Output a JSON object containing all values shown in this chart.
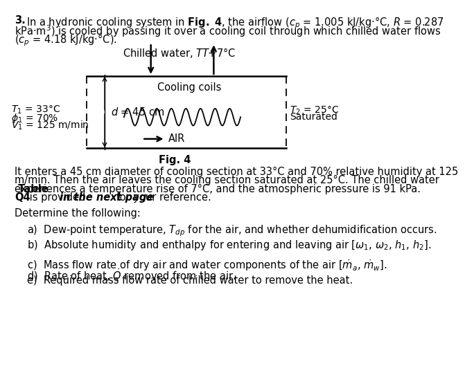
{
  "bg_color": "#ffffff",
  "text_color": "#000000",
  "fig_caption": "Fig. 4",
  "chilled_water_label": "Chilled water, $T$",
  "chilled_water_out": "$T$+7°C",
  "cooling_coils_label": "Cooling coils",
  "air_label": "AIR",
  "d_label": "$d$ = 45 cm",
  "left_label1": "$T_1$ = 33°C",
  "left_label2": "$\\phi_1$ = 70%",
  "left_label3": "$V_1$ = 125 m/min",
  "right_label1": "$T_2$ = 25°C",
  "right_label2": "Saturated",
  "para_line1": "It enters a 45 cm diameter of cooling section at 33°C and 70% relative humidity at 125",
  "para_line2": "m/min. Then the air leaves the cooling section saturated at 25°C. The chilled water",
  "para_line3": "experiences a temperature rise of 7°C, and the atmospheric pressure is 91 kPa.",
  "para_bold": "Table",
  "para_line4a": "Q4",
  "para_line4b": " is provided ",
  "para_line4c": "in the next page",
  "para_line4d": " for your reference.",
  "determine": "Determine the following:",
  "item_a": "a)  Dew-point temperature, $T_{dp}$ for the air, and whether dehumidification occurs.",
  "item_b": "b)  Absolute humidity and enthalpy for entering and leaving air [$\\omega_1$, $\\omega_2$, $h_1$, $h_2$].",
  "item_c": "c)  Mass flow rate of dry air and water components of the air [$\\dot{m}_a$, $\\dot{m}_w$].",
  "item_d": "d)  Rate of heat, $\\dot{Q}$ removed from the air.",
  "item_e": "e)  Required mass flow rate of chilled water to remove the heat.",
  "intro_num": "3.",
  "intro_l1": "In a hydronic cooling system in $\\mathbf{Fig.\\ 4}$, the airflow ($c_p$ = 1.005 kJ/kg·°C, $R$ = 0.287",
  "intro_l2": "kPa·m$^3$) is cooled by passing it over a cooling coil through which chilled water flows",
  "intro_l3": "($c_p$ = 4.18 kJ/kg·°C)."
}
